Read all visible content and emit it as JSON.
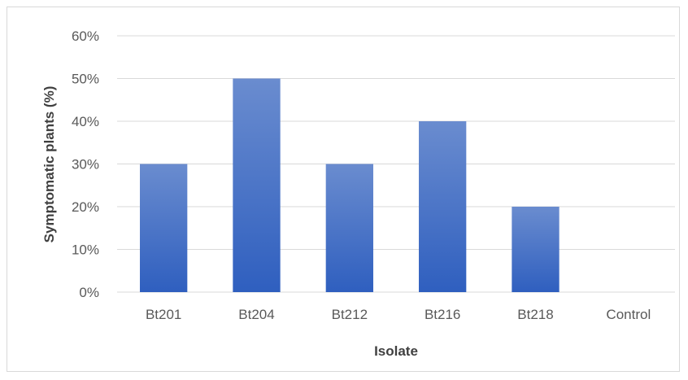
{
  "chart_data": {
    "type": "bar",
    "title": "",
    "xlabel": "Isolate",
    "ylabel": "Symptomatic plants (%)",
    "categories": [
      "Bt201",
      "Bt204",
      "Bt212",
      "Bt216",
      "Bt218",
      "Control"
    ],
    "values": [
      30,
      50,
      30,
      40,
      20,
      0
    ],
    "ylim": [
      0,
      60
    ],
    "yticks": [
      "0%",
      "10%",
      "20%",
      "30%",
      "40%",
      "50%",
      "60%"
    ],
    "grid": true,
    "legend": "none",
    "colors": {
      "bar_top": "#6a8ccf",
      "bar_bottom": "#2f5fbf",
      "grid": "#d9d9d9"
    }
  }
}
